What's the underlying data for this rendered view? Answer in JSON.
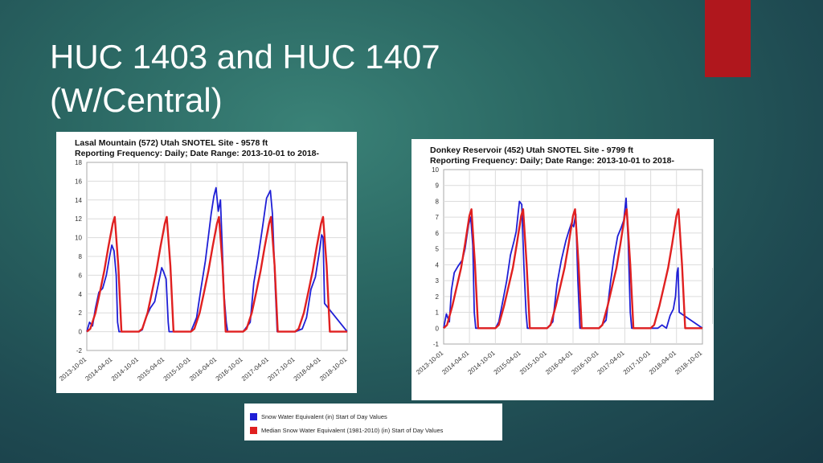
{
  "slide": {
    "title_line1": "HUC 1403 and HUC 1407",
    "title_line2": "(W/Central)",
    "accent_color": "#b0171d"
  },
  "chart_data": [
    {
      "type": "line",
      "title": "Lasal Mountain (572) Utah SNOTEL Site - 9578 ft",
      "subtitle": "Reporting Frequency: Daily; Date Range: 2013-10-01 to 2018-",
      "ylim": [
        -2,
        18
      ],
      "yticks": [
        -2,
        0,
        2,
        4,
        6,
        8,
        10,
        12,
        14,
        16,
        18
      ],
      "xlim": [
        "2013-10-01",
        "2018-10-01"
      ],
      "xtick_labels": [
        "2013-10-01",
        "2014-04-01",
        "2014-10-01",
        "2015-04-01",
        "2015-10-01",
        "2016-04-01",
        "2016-10-01",
        "2017-04-01",
        "2017-10-01",
        "2018-04-01",
        "2018-10-01"
      ],
      "grid": true,
      "series": [
        {
          "name": "Snow Water Equivalent (in) Start of Day Values",
          "color": "#1f1fd6",
          "x": [
            "2013-10-01",
            "2013-10-20",
            "2013-11-10",
            "2013-12-01",
            "2013-12-25",
            "2014-01-20",
            "2014-02-15",
            "2014-03-10",
            "2014-03-25",
            "2014-04-10",
            "2014-04-25",
            "2014-05-05",
            "2014-05-15",
            "2014-10-01",
            "2014-10-25",
            "2014-11-20",
            "2014-12-20",
            "2015-01-20",
            "2015-02-20",
            "2015-03-10",
            "2015-03-20",
            "2015-04-10",
            "2015-04-25",
            "2015-05-01",
            "2015-10-01",
            "2015-11-10",
            "2015-12-10",
            "2016-01-10",
            "2016-02-01",
            "2016-02-20",
            "2016-03-10",
            "2016-03-25",
            "2016-04-10",
            "2016-04-25",
            "2016-05-20",
            "2016-06-05",
            "2016-06-15",
            "2016-10-01",
            "2016-11-20",
            "2016-12-15",
            "2017-01-15",
            "2017-02-15",
            "2017-03-15",
            "2017-04-10",
            "2017-04-25",
            "2017-05-15",
            "2017-05-28",
            "2017-10-01",
            "2017-11-20",
            "2017-12-20",
            "2018-01-20",
            "2018-02-20",
            "2018-03-20",
            "2018-04-05",
            "2018-04-15",
            "2018-04-25",
            "2018-10-01"
          ],
          "y": [
            0,
            1,
            0.6,
            2.5,
            4.2,
            4.6,
            6,
            8,
            9.2,
            8.6,
            6,
            1,
            0,
            0,
            0.2,
            1.5,
            2.5,
            3.2,
            5.5,
            6.8,
            6.5,
            5.6,
            1,
            0,
            0,
            1.5,
            4.5,
            7.5,
            10.2,
            12.5,
            14.4,
            15.3,
            12.8,
            14,
            4,
            1,
            0,
            0,
            1,
            5.2,
            8,
            11.2,
            14.2,
            15,
            12.5,
            4.5,
            0,
            0,
            0.3,
            1.5,
            4.5,
            5.8,
            8.5,
            10.3,
            10,
            3,
            0
          ]
        },
        {
          "name": "Median Snow Water Equivalent (1981-2010) (in) Start of Day Values",
          "color": "#e02020",
          "x": [
            "2013-10-01",
            "2013-10-25",
            "2013-12-01",
            "2014-01-01",
            "2014-02-01",
            "2014-03-01",
            "2014-04-01",
            "2014-04-15",
            "2014-05-10",
            "2014-06-01",
            "2014-10-01",
            "2014-10-25",
            "2014-12-01",
            "2015-01-01",
            "2015-02-01",
            "2015-03-01",
            "2015-04-01",
            "2015-04-15",
            "2015-05-10",
            "2015-06-01",
            "2015-10-01",
            "2015-10-25",
            "2015-12-01",
            "2016-01-01",
            "2016-02-01",
            "2016-03-01",
            "2016-04-01",
            "2016-04-15",
            "2016-05-10",
            "2016-06-01",
            "2016-10-01",
            "2016-10-25",
            "2016-12-01",
            "2017-01-01",
            "2017-02-01",
            "2017-03-01",
            "2017-04-01",
            "2017-04-15",
            "2017-05-10",
            "2017-06-01",
            "2017-10-01",
            "2017-10-25",
            "2017-12-01",
            "2018-01-01",
            "2018-02-01",
            "2018-03-01",
            "2018-04-01",
            "2018-04-15",
            "2018-05-10",
            "2018-06-01",
            "2018-10-01"
          ],
          "y": [
            0,
            0.3,
            2,
            4.2,
            6.5,
            9,
            11.5,
            12.2,
            7,
            0,
            0,
            0.3,
            2,
            4.2,
            6.5,
            9,
            11.5,
            12.2,
            7,
            0,
            0,
            0.3,
            2,
            4.2,
            6.5,
            9,
            11.5,
            12.2,
            7,
            0,
            0,
            0.3,
            2,
            4.2,
            6.5,
            9,
            11.5,
            12.2,
            7,
            0,
            0,
            0.3,
            2,
            4.2,
            6.5,
            9,
            11.5,
            12.2,
            7,
            0,
            0
          ]
        }
      ]
    },
    {
      "type": "line",
      "title": "Donkey Reservoir (452) Utah SNOTEL Site - 9799 ft",
      "subtitle": "Reporting Frequency: Daily; Date Range: 2013-10-01 to 2018-",
      "ylim": [
        -1,
        10
      ],
      "yticks": [
        -1,
        0,
        1,
        2,
        3,
        4,
        5,
        6,
        7,
        8,
        9,
        10
      ],
      "xlim": [
        "2013-10-01",
        "2018-10-01"
      ],
      "xtick_labels": [
        "2013-10-01",
        "2014-04-01",
        "2014-10-01",
        "2015-04-01",
        "2015-10-01",
        "2016-04-01",
        "2016-10-01",
        "2017-04-01",
        "2017-10-01",
        "2018-04-01",
        "2018-10-01"
      ],
      "grid": true,
      "series": [
        {
          "name": "Snow Water Equivalent (in) Start of Day Values",
          "color": "#1f1fd6",
          "x": [
            "2013-10-01",
            "2013-10-20",
            "2013-11-10",
            "2013-11-25",
            "2013-12-15",
            "2014-01-10",
            "2014-02-10",
            "2014-03-01",
            "2014-03-25",
            "2014-04-10",
            "2014-04-25",
            "2014-05-05",
            "2014-05-15",
            "2014-10-01",
            "2014-10-25",
            "2014-11-20",
            "2014-12-20",
            "2015-01-15",
            "2015-02-10",
            "2015-02-25",
            "2015-03-10",
            "2015-03-20",
            "2015-04-05",
            "2015-04-20",
            "2015-05-05",
            "2015-05-15",
            "2015-10-01",
            "2015-11-10",
            "2015-12-10",
            "2016-01-10",
            "2016-02-10",
            "2016-03-05",
            "2016-03-20",
            "2016-04-05",
            "2016-04-20",
            "2016-05-05",
            "2016-05-20",
            "2016-10-01",
            "2016-11-20",
            "2016-12-20",
            "2017-01-15",
            "2017-02-10",
            "2017-03-05",
            "2017-03-25",
            "2017-04-10",
            "2017-04-25",
            "2017-05-10",
            "2017-05-20",
            "2017-10-01",
            "2017-11-20",
            "2017-12-20",
            "2018-01-20",
            "2018-02-15",
            "2018-03-10",
            "2018-03-25",
            "2018-04-05",
            "2018-04-12",
            "2018-04-20",
            "2018-10-01"
          ],
          "y": [
            0,
            0.9,
            0.4,
            2.4,
            3.5,
            3.9,
            4.3,
            5,
            6.5,
            7,
            5.2,
            1,
            0,
            0,
            0.4,
            1.6,
            3,
            4.6,
            5.5,
            6.1,
            7.2,
            8,
            7.8,
            4,
            1,
            0,
            0,
            0.4,
            2.8,
            4.3,
            5.5,
            6.2,
            6.6,
            6.4,
            7.2,
            3,
            0,
            0,
            0.5,
            2.8,
            4.5,
            5.8,
            6.3,
            6.8,
            8.2,
            5.5,
            1,
            0,
            0,
            0,
            0.2,
            0,
            0.8,
            1.2,
            2,
            3.5,
            3.8,
            1,
            0
          ]
        },
        {
          "name": "Median Snow Water Equivalent (1981-2010) (in) Start of Day Values",
          "color": "#e02020",
          "x": [
            "2013-10-01",
            "2013-10-25",
            "2013-12-01",
            "2014-01-01",
            "2014-02-01",
            "2014-03-01",
            "2014-04-01",
            "2014-04-15",
            "2014-05-10",
            "2014-06-01",
            "2014-10-01",
            "2014-10-25",
            "2014-12-01",
            "2015-01-01",
            "2015-02-01",
            "2015-03-01",
            "2015-04-01",
            "2015-04-15",
            "2015-05-10",
            "2015-06-01",
            "2015-10-01",
            "2015-10-25",
            "2015-12-01",
            "2016-01-01",
            "2016-02-01",
            "2016-03-01",
            "2016-04-01",
            "2016-04-15",
            "2016-05-10",
            "2016-06-01",
            "2016-10-01",
            "2016-10-25",
            "2016-12-01",
            "2017-01-01",
            "2017-02-01",
            "2017-03-01",
            "2017-04-01",
            "2017-04-15",
            "2017-05-10",
            "2017-06-01",
            "2017-10-01",
            "2017-10-25",
            "2017-12-01",
            "2018-01-01",
            "2018-02-01",
            "2018-03-01",
            "2018-04-01",
            "2018-04-15",
            "2018-05-10",
            "2018-06-01",
            "2018-10-01"
          ],
          "y": [
            0,
            0.2,
            1.4,
            2.6,
            3.8,
            5.3,
            7.1,
            7.5,
            4,
            0,
            0,
            0.2,
            1.4,
            2.6,
            3.8,
            5.3,
            7.1,
            7.5,
            4,
            0,
            0,
            0.2,
            1.4,
            2.6,
            3.8,
            5.3,
            7.1,
            7.5,
            4,
            0,
            0,
            0.2,
            1.4,
            2.6,
            3.8,
            5.3,
            7.1,
            7.5,
            4,
            0,
            0,
            0.2,
            1.4,
            2.6,
            3.8,
            5.3,
            7.1,
            7.5,
            4,
            0,
            0
          ]
        }
      ]
    }
  ],
  "legend": {
    "items": [
      {
        "label": "Snow Water Equivalent (in) Start of Day Values",
        "color": "#1f1fd6"
      },
      {
        "label": "Median Snow Water Equivalent (1981-2010) (in) Start of Day Values",
        "color": "#e02020"
      }
    ]
  }
}
